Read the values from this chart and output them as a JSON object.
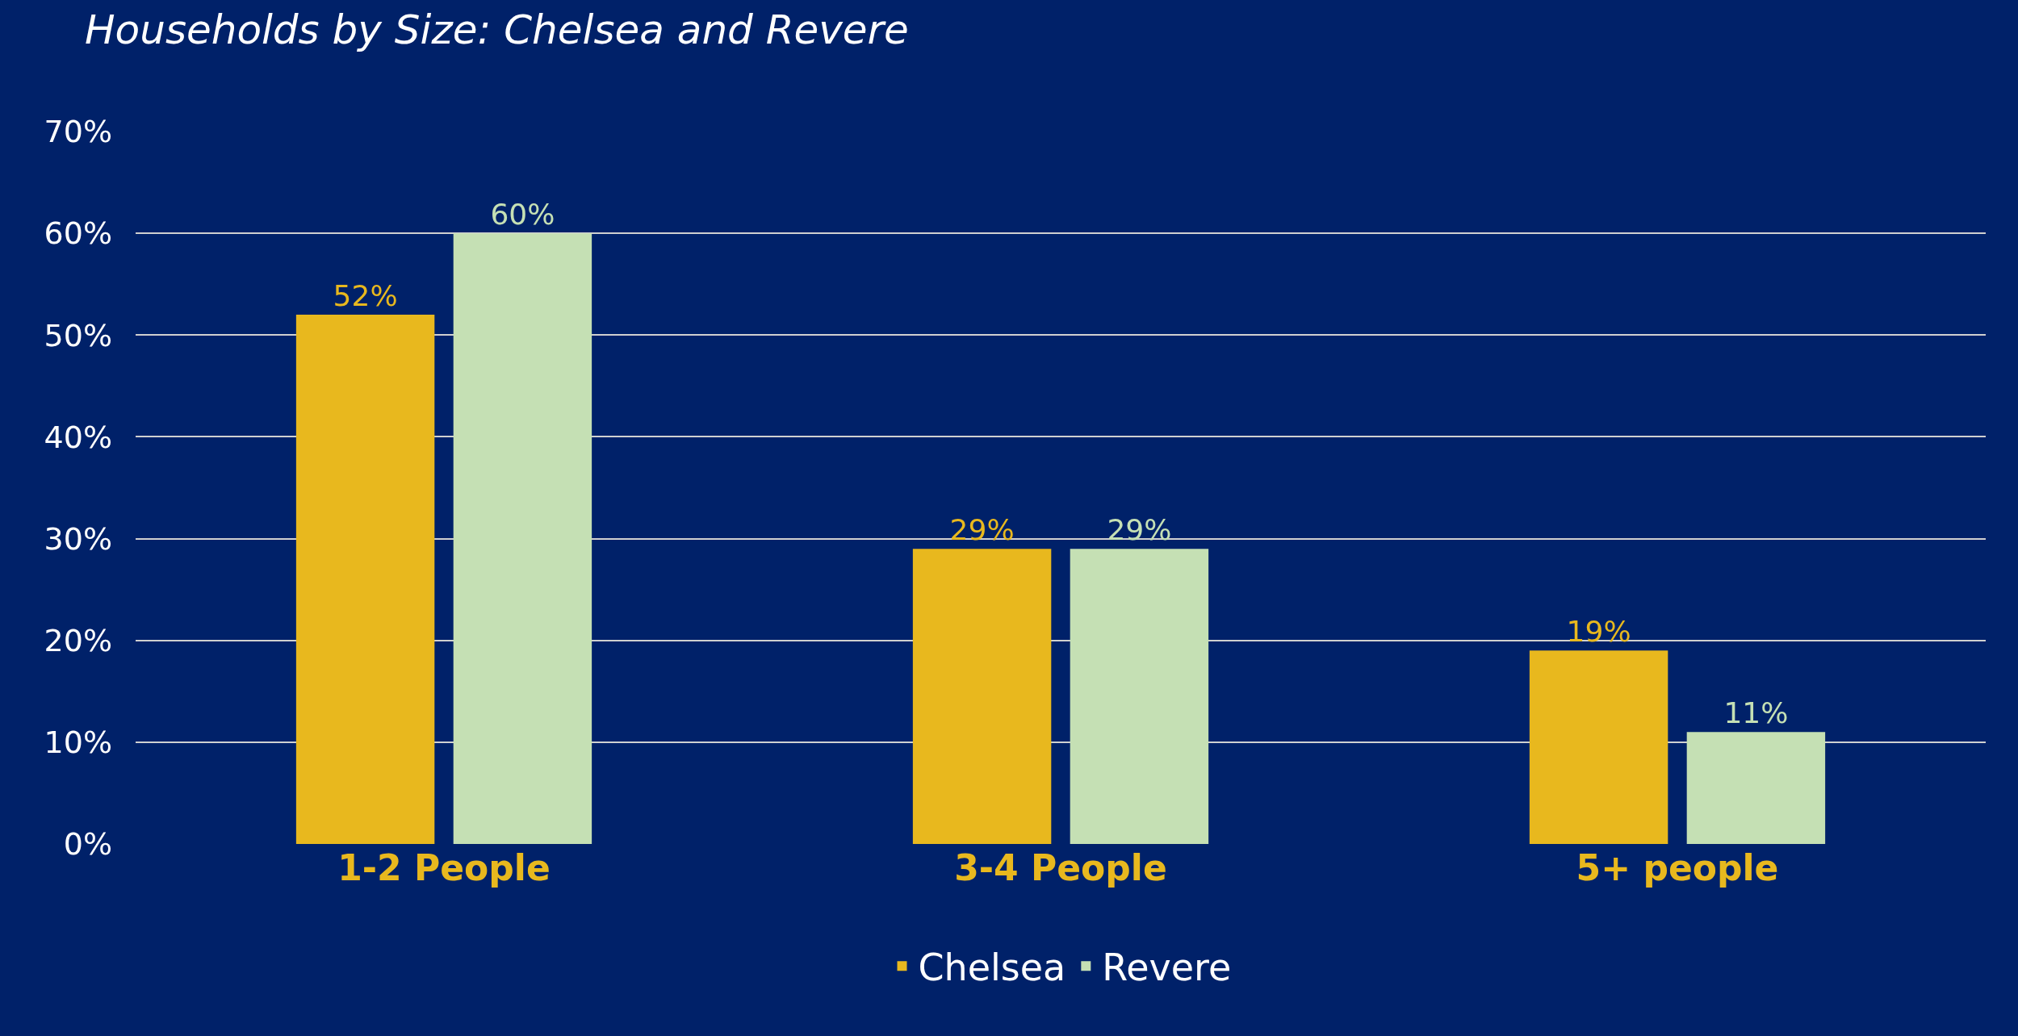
{
  "chart_data": {
    "type": "bar",
    "title": "Households by Size: Chelsea and Revere",
    "categories": [
      "1-2 People",
      "3-4 People",
      "5+ people"
    ],
    "series": [
      {
        "name": "Chelsea",
        "color": "#e8b81e",
        "values": [
          52,
          29,
          19
        ],
        "value_labels": [
          "52%",
          "29%",
          "19%"
        ]
      },
      {
        "name": "Revere",
        "color": "#c5e0b4",
        "values": [
          60,
          29,
          11
        ],
        "value_labels": [
          "60%",
          "29%",
          "11%"
        ]
      }
    ],
    "ylim": [
      0,
      70
    ],
    "yticks": [
      {
        "value": 0,
        "label": "0%"
      },
      {
        "value": 10,
        "label": "10%"
      },
      {
        "value": 20,
        "label": "20%"
      },
      {
        "value": 30,
        "label": "30%"
      },
      {
        "value": 40,
        "label": "40%"
      },
      {
        "value": 50,
        "label": "50%"
      },
      {
        "value": 60,
        "label": "60%"
      },
      {
        "value": 70,
        "label": "70%"
      }
    ],
    "grid": "y",
    "legend": "bottom"
  }
}
